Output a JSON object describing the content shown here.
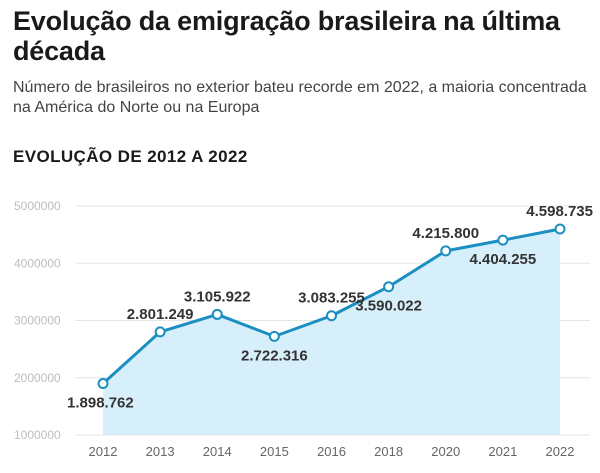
{
  "header": {
    "title": "Evolução da emigração brasileira na última década",
    "subtitle": "Número de brasileiros no exterior bateu recorde em 2022, a maioria concentrada na América do Norte ou na Europa",
    "section_label": "EVOLUÇÃO DE 2012 A 2022"
  },
  "chart_data": {
    "type": "area",
    "title": "EVOLUÇÃO DE 2012 A 2022",
    "xlabel": "",
    "ylabel": "",
    "categories": [
      "2012",
      "2013",
      "2014",
      "2015",
      "2016",
      "2018",
      "2020",
      "2021",
      "2022"
    ],
    "values": [
      1898762,
      2801249,
      3105922,
      2722316,
      3083255,
      3590022,
      4215800,
      4404255,
      4598735
    ],
    "value_labels": [
      "1.898.762",
      "2.801.249",
      "3.105.922",
      "2.722.316",
      "3.083.255",
      "3.590.022",
      "4.215.800",
      "4.404.255",
      "4.598.735"
    ],
    "label_positions": [
      "below",
      "above",
      "above",
      "below",
      "above",
      "below",
      "above",
      "below",
      "above"
    ],
    "yticks": [
      1000000,
      2000000,
      3000000,
      4000000,
      5000000
    ],
    "ytick_labels": [
      "1000000",
      "2000000",
      "3000000",
      "4000000",
      "5000000"
    ],
    "ylim": [
      1000000,
      5000000
    ],
    "grid": true,
    "colors": {
      "line": "#1b8fc1",
      "fill": "#d6effa",
      "grid": "#e6e6e6",
      "marker_fill": "#ffffff"
    }
  }
}
